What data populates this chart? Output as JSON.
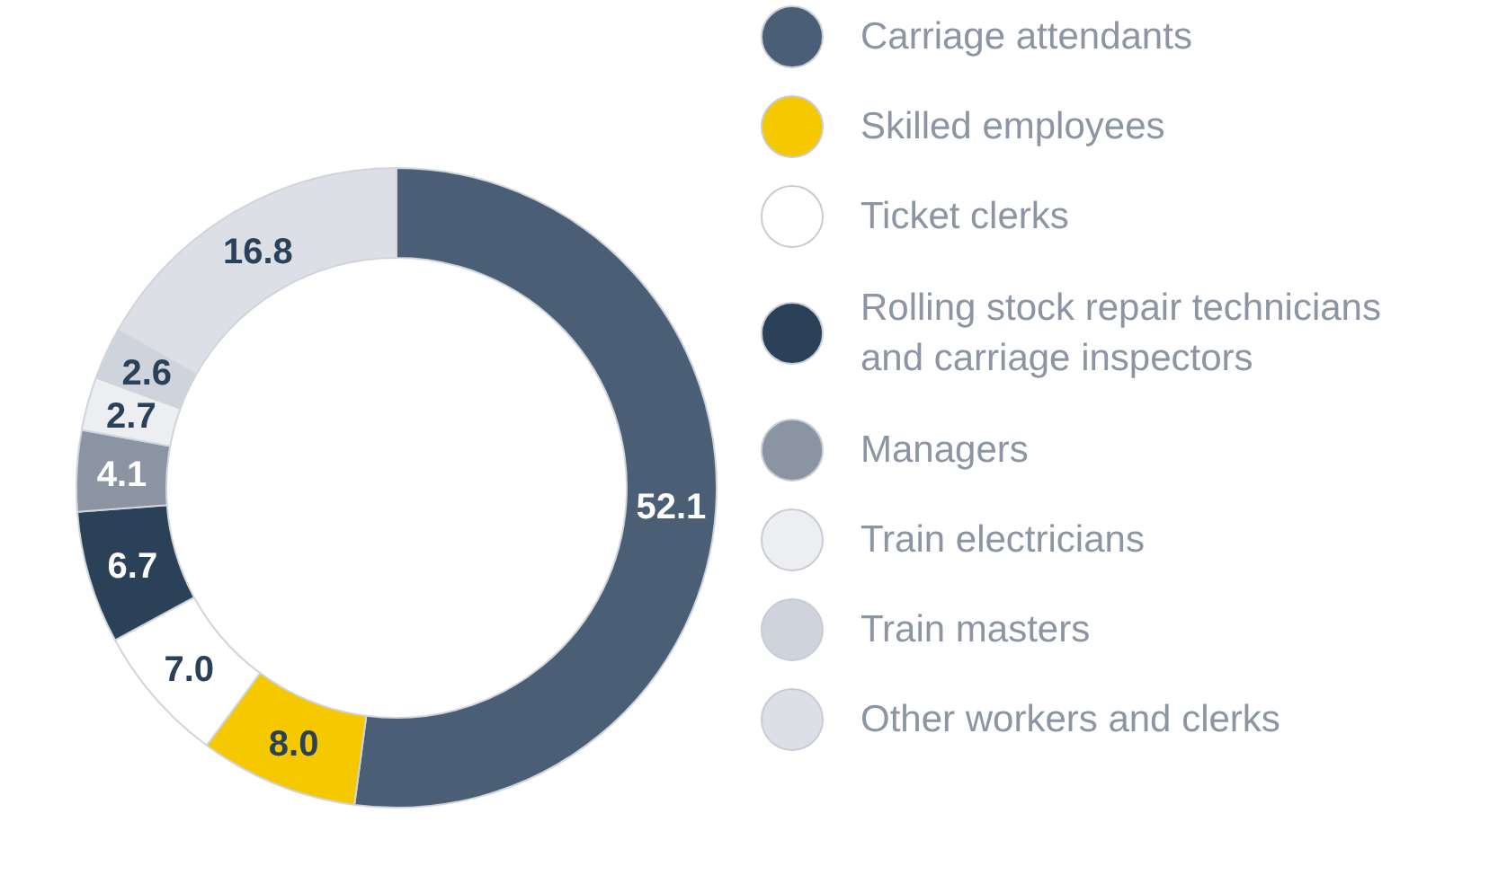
{
  "chart_data": {
    "type": "donut",
    "categories": [
      "Carriage attendants",
      "Skilled employees",
      "Ticket clerks",
      "Rolling stock repair technicians and carriage inspectors",
      "Managers",
      "Train electricians",
      "Train masters",
      "Other workers and clerks"
    ],
    "values": [
      52.1,
      8.0,
      7.0,
      6.7,
      4.1,
      2.7,
      2.6,
      16.8
    ],
    "colors": [
      "#4a5e75",
      "#f5c800",
      "#ffffff",
      "#2a4157",
      "#8a94a3",
      "#eceef2",
      "#cfd3db",
      "#dcdfe6"
    ],
    "value_labels": [
      "52.1",
      "8.0",
      "7.0",
      "6.7",
      "4.1",
      "2.7",
      "2.6",
      "16.8"
    ],
    "legend": "right"
  }
}
